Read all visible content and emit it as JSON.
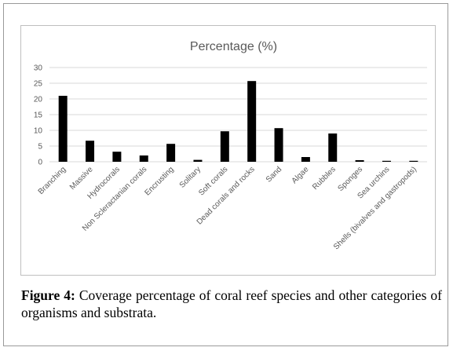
{
  "chart_data": {
    "type": "bar",
    "title": "Percentage (%)",
    "xlabel": "",
    "ylabel": "",
    "ylim": [
      0,
      30
    ],
    "yticks": [
      0,
      5,
      10,
      15,
      20,
      25,
      30
    ],
    "grid": true,
    "legend": "none",
    "bar_color": "#000000",
    "grid_color": "#d9d9d9",
    "categories": [
      "Branching",
      "Massive",
      "Hydrocorals",
      "Non Scleractanian corals",
      "Encrusting",
      "Solitary",
      "Soft corals",
      "Dead corals and rocks",
      "Sand",
      "Algae",
      "Rubbles",
      "Sponges",
      "Sea urchins",
      "Shells (bivalves and gastropods)"
    ],
    "values": [
      21,
      6.7,
      3.2,
      2.0,
      5.7,
      0.6,
      9.7,
      25.7,
      10.7,
      1.5,
      9.0,
      0.5,
      0.3,
      0.3
    ]
  },
  "caption": {
    "label": "Figure 4:",
    "text": " Coverage percentage of coral reef species and other categories of organisms and substrata."
  }
}
